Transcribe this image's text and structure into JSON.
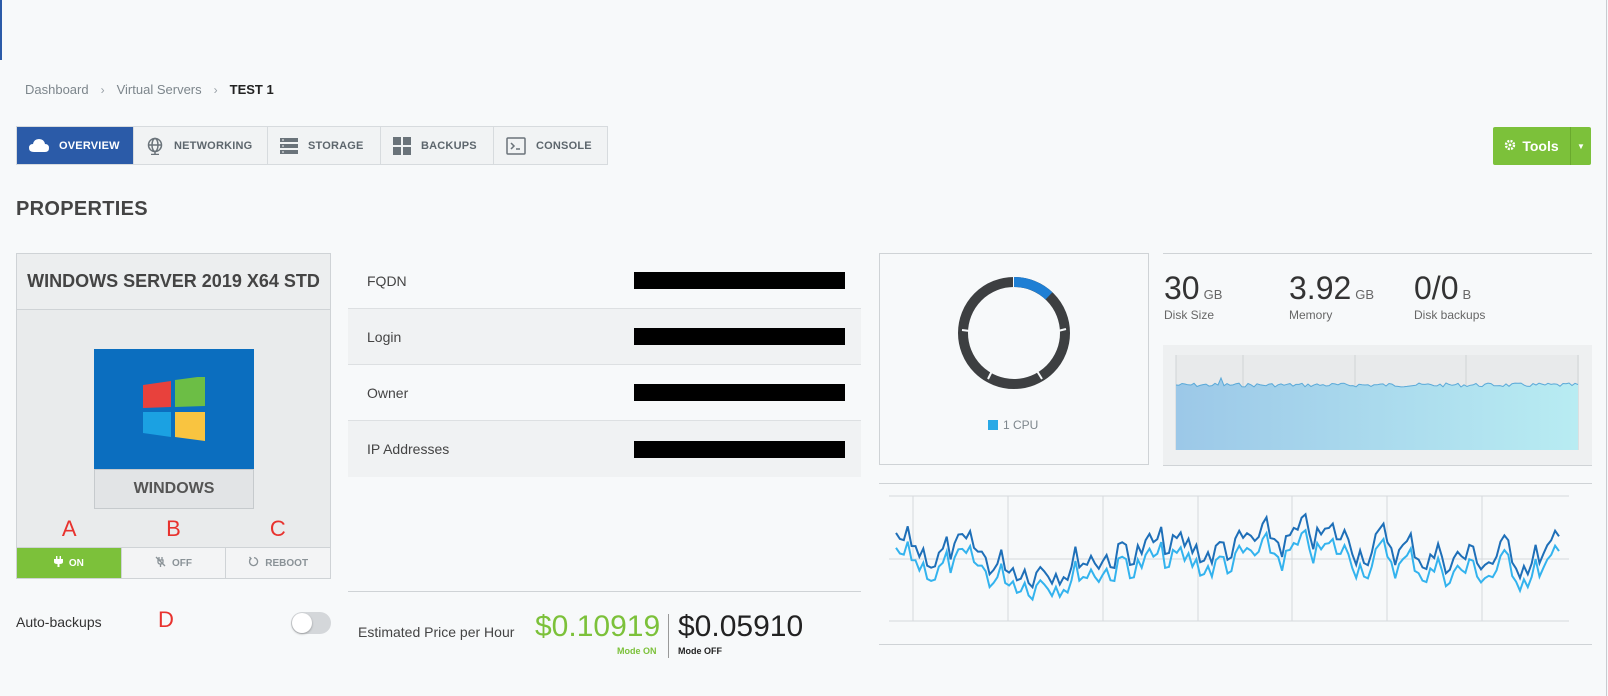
{
  "breadcrumb": {
    "items": [
      "Dashboard",
      "Virtual Servers"
    ],
    "current": "TEST 1"
  },
  "tabs": [
    {
      "label": "OVERVIEW",
      "icon": "cloud-icon",
      "active": true
    },
    {
      "label": "NETWORKING",
      "icon": "globe-icon"
    },
    {
      "label": "STORAGE",
      "icon": "server-icon"
    },
    {
      "label": "BACKUPS",
      "icon": "grid-icon"
    },
    {
      "label": "CONSOLE",
      "icon": "terminal-icon"
    }
  ],
  "tools": {
    "label": "Tools",
    "icon": "gear-icon"
  },
  "section_title": "PROPERTIES",
  "os": {
    "title": "WINDOWS SERVER 2019 X64 STD",
    "tile_label": "WINDOWS",
    "icon": "windows-logo-icon",
    "tile_color": "#0b6ebf"
  },
  "annotations": {
    "a": "A",
    "b": "B",
    "c": "C",
    "d": "D"
  },
  "power": {
    "on": {
      "label": "ON",
      "icon": "plug-icon"
    },
    "off": {
      "label": "OFF",
      "icon": "unplug-icon"
    },
    "reboot": {
      "label": "REBOOT",
      "icon": "reboot-icon"
    }
  },
  "auto_backups": {
    "label": "Auto-backups",
    "enabled": false
  },
  "properties": [
    {
      "key": "FQDN",
      "value_redacted": true
    },
    {
      "key": "Login",
      "value_redacted": true
    },
    {
      "key": "Owner",
      "value_redacted": true
    },
    {
      "key": "IP Addresses",
      "value_redacted": true
    }
  ],
  "price": {
    "label": "Estimated Price per Hour",
    "on_value": "$0.10919",
    "on_sub": "Mode ON",
    "off_value": "$0.05910",
    "off_sub": "Mode OFF"
  },
  "cpu": {
    "legend": "1 CPU",
    "usage_fraction": 0.12,
    "color": "#1f7fd4"
  },
  "stats": {
    "disk": {
      "value": "30",
      "unit": "GB",
      "label": "Disk Size"
    },
    "memory": {
      "value": "3.92",
      "unit": "GB",
      "label": "Memory"
    },
    "backups": {
      "value": "0/0",
      "unit": "B",
      "label": "Disk backups"
    }
  },
  "colors": {
    "primary": "#2b5ba8",
    "accent_green": "#7cc13a",
    "annotation_red": "#e8322e"
  }
}
